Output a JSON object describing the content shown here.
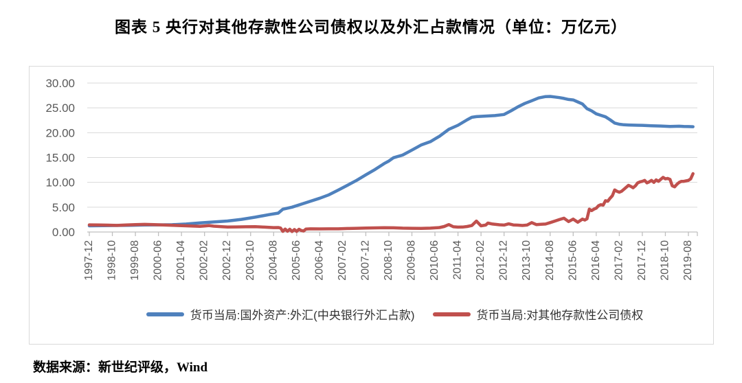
{
  "title": "图表 5  央行对其他存款性公司债权以及外汇占款情况（单位：万亿元）",
  "source": "数据来源：新世纪评级，Wind",
  "chart_data": {
    "type": "line",
    "title": "央行对其他存款性公司债权以及外汇占款情况",
    "unit": "万亿元",
    "xlabel": "",
    "ylabel": "",
    "ylim": [
      0,
      30
    ],
    "ytick_values": [
      0,
      5,
      10,
      15,
      20,
      25,
      30
    ],
    "ytick_label_format": "0.00",
    "grid": "horizontal",
    "legend_position": "bottom",
    "x_axis": {
      "start": "1997-12",
      "end": "2019-10",
      "tick_month_step": 10,
      "tick_labels": [
        "1997-12",
        "1998-10",
        "1999-08",
        "2000-06",
        "2001-04",
        "2002-02",
        "2002-12",
        "2003-10",
        "2004-08",
        "2005-06",
        "2006-04",
        "2007-02",
        "2007-12",
        "2008-10",
        "2009-08",
        "2010-06",
        "2011-04",
        "2012-02",
        "2012-12",
        "2013-10",
        "2014-08",
        "2015-06",
        "2016-04",
        "2017-02",
        "2017-12",
        "2018-10",
        "2019-08"
      ]
    },
    "axis_color": "#bfbfbf",
    "gridline_color": "#d9d9d9",
    "tick_label_color": "#595959",
    "series": [
      {
        "name": "货币当局:国外资产:外汇(中央银行外汇占款)",
        "color": "#4F81BD",
        "x_unit": "months since 1997-12",
        "points": [
          [
            0,
            1.25
          ],
          [
            6,
            1.28
          ],
          [
            12,
            1.31
          ],
          [
            18,
            1.36
          ],
          [
            24,
            1.41
          ],
          [
            30,
            1.44
          ],
          [
            36,
            1.46
          ],
          [
            42,
            1.6
          ],
          [
            48,
            1.84
          ],
          [
            54,
            2.02
          ],
          [
            60,
            2.21
          ],
          [
            66,
            2.55
          ],
          [
            72,
            2.98
          ],
          [
            78,
            3.5
          ],
          [
            82,
            3.8
          ],
          [
            84,
            4.59
          ],
          [
            88,
            5.0
          ],
          [
            92,
            5.6
          ],
          [
            96,
            6.21
          ],
          [
            100,
            6.8
          ],
          [
            104,
            7.5
          ],
          [
            108,
            8.44
          ],
          [
            112,
            9.4
          ],
          [
            116,
            10.4
          ],
          [
            120,
            11.52
          ],
          [
            124,
            12.6
          ],
          [
            128,
            13.8
          ],
          [
            130,
            14.3
          ],
          [
            132,
            14.96
          ],
          [
            136,
            15.5
          ],
          [
            140,
            16.5
          ],
          [
            144,
            17.51
          ],
          [
            148,
            18.2
          ],
          [
            152,
            19.3
          ],
          [
            156,
            20.68
          ],
          [
            160,
            21.5
          ],
          [
            164,
            22.6
          ],
          [
            166,
            23.1
          ],
          [
            168,
            23.24
          ],
          [
            172,
            23.35
          ],
          [
            176,
            23.45
          ],
          [
            180,
            23.67
          ],
          [
            183,
            24.4
          ],
          [
            186,
            25.2
          ],
          [
            189,
            25.9
          ],
          [
            192,
            26.43
          ],
          [
            195,
            27.0
          ],
          [
            198,
            27.28
          ],
          [
            200,
            27.3
          ],
          [
            202,
            27.2
          ],
          [
            204,
            27.07
          ],
          [
            206,
            26.9
          ],
          [
            208,
            26.7
          ],
          [
            210,
            26.6
          ],
          [
            212,
            26.2
          ],
          [
            214,
            25.8
          ],
          [
            216,
            24.85
          ],
          [
            218,
            24.4
          ],
          [
            220,
            23.8
          ],
          [
            222,
            23.5
          ],
          [
            224,
            23.2
          ],
          [
            226,
            22.6
          ],
          [
            228,
            21.94
          ],
          [
            230,
            21.7
          ],
          [
            232,
            21.6
          ],
          [
            234,
            21.55
          ],
          [
            238,
            21.5
          ],
          [
            240,
            21.48
          ],
          [
            244,
            21.4
          ],
          [
            248,
            21.35
          ],
          [
            252,
            21.25
          ],
          [
            256,
            21.3
          ],
          [
            258,
            21.25
          ],
          [
            260,
            21.23
          ],
          [
            262,
            21.21
          ]
        ]
      },
      {
        "name": "货币当局:对其他存款性公司债权",
        "color": "#C0504D",
        "x_unit": "months since 1997-12",
        "points": [
          [
            0,
            1.44
          ],
          [
            4,
            1.42
          ],
          [
            8,
            1.38
          ],
          [
            12,
            1.33
          ],
          [
            16,
            1.42
          ],
          [
            20,
            1.48
          ],
          [
            24,
            1.54
          ],
          [
            28,
            1.48
          ],
          [
            32,
            1.41
          ],
          [
            36,
            1.35
          ],
          [
            40,
            1.29
          ],
          [
            44,
            1.2
          ],
          [
            48,
            1.13
          ],
          [
            50,
            1.22
          ],
          [
            52,
            1.3
          ],
          [
            54,
            1.18
          ],
          [
            58,
            1.05
          ],
          [
            60,
            1.0
          ],
          [
            64,
            1.02
          ],
          [
            68,
            1.05
          ],
          [
            72,
            1.06
          ],
          [
            76,
            0.98
          ],
          [
            80,
            0.88
          ],
          [
            82,
            0.9
          ],
          [
            83,
            0.8
          ],
          [
            84,
            0.12
          ],
          [
            85,
            0.6
          ],
          [
            86,
            0.15
          ],
          [
            87,
            0.55
          ],
          [
            88,
            0.1
          ],
          [
            89,
            0.5
          ],
          [
            90,
            0.12
          ],
          [
            91,
            0.55
          ],
          [
            92,
            0.3
          ],
          [
            93,
            0.2
          ],
          [
            94,
            0.6
          ],
          [
            96,
            0.63
          ],
          [
            100,
            0.62
          ],
          [
            104,
            0.64
          ],
          [
            108,
            0.64
          ],
          [
            112,
            0.7
          ],
          [
            116,
            0.75
          ],
          [
            120,
            0.79
          ],
          [
            124,
            0.83
          ],
          [
            128,
            0.86
          ],
          [
            132,
            0.84
          ],
          [
            136,
            0.78
          ],
          [
            140,
            0.74
          ],
          [
            144,
            0.72
          ],
          [
            148,
            0.78
          ],
          [
            152,
            0.9
          ],
          [
            154,
            1.1
          ],
          [
            156,
            1.5
          ],
          [
            158,
            1.05
          ],
          [
            160,
            0.98
          ],
          [
            162,
            1.0
          ],
          [
            164,
            1.1
          ],
          [
            166,
            1.3
          ],
          [
            168,
            2.2
          ],
          [
            170,
            1.25
          ],
          [
            172,
            1.4
          ],
          [
            173,
            1.8
          ],
          [
            175,
            1.6
          ],
          [
            178,
            1.45
          ],
          [
            180,
            1.4
          ],
          [
            182,
            1.65
          ],
          [
            184,
            1.42
          ],
          [
            186,
            1.38
          ],
          [
            188,
            1.32
          ],
          [
            190,
            1.4
          ],
          [
            192,
            1.9
          ],
          [
            194,
            1.5
          ],
          [
            196,
            1.55
          ],
          [
            198,
            1.6
          ],
          [
            200,
            1.9
          ],
          [
            202,
            2.2
          ],
          [
            204,
            2.5
          ],
          [
            206,
            2.78
          ],
          [
            208,
            2.1
          ],
          [
            210,
            2.6
          ],
          [
            212,
            1.98
          ],
          [
            214,
            2.6
          ],
          [
            215,
            2.4
          ],
          [
            216,
            2.66
          ],
          [
            217,
            4.6
          ],
          [
            218,
            4.3
          ],
          [
            219,
            4.6
          ],
          [
            220,
            4.8
          ],
          [
            221,
            5.3
          ],
          [
            222,
            5.5
          ],
          [
            223,
            5.4
          ],
          [
            224,
            6.3
          ],
          [
            225,
            6.2
          ],
          [
            226,
            6.8
          ],
          [
            227,
            7.3
          ],
          [
            228,
            8.47
          ],
          [
            229,
            8.2
          ],
          [
            230,
            8.0
          ],
          [
            231,
            8.2
          ],
          [
            232,
            8.6
          ],
          [
            233,
            9.0
          ],
          [
            234,
            9.4
          ],
          [
            235,
            9.2
          ],
          [
            236,
            8.9
          ],
          [
            237,
            9.3
          ],
          [
            238,
            9.9
          ],
          [
            239,
            10.1
          ],
          [
            240,
            10.2
          ],
          [
            241,
            10.4
          ],
          [
            242,
            9.9
          ],
          [
            243,
            10.1
          ],
          [
            244,
            10.4
          ],
          [
            245,
            10.0
          ],
          [
            246,
            10.5
          ],
          [
            247,
            10.2
          ],
          [
            248,
            10.6
          ],
          [
            249,
            11.0
          ],
          [
            250,
            10.7
          ],
          [
            251,
            10.8
          ],
          [
            252,
            10.6
          ],
          [
            253,
            9.3
          ],
          [
            254,
            9.1
          ],
          [
            255,
            9.6
          ],
          [
            256,
            10.0
          ],
          [
            257,
            10.2
          ],
          [
            258,
            10.2
          ],
          [
            259,
            10.3
          ],
          [
            260,
            10.4
          ],
          [
            261,
            10.7
          ],
          [
            262,
            11.75
          ]
        ]
      }
    ]
  }
}
